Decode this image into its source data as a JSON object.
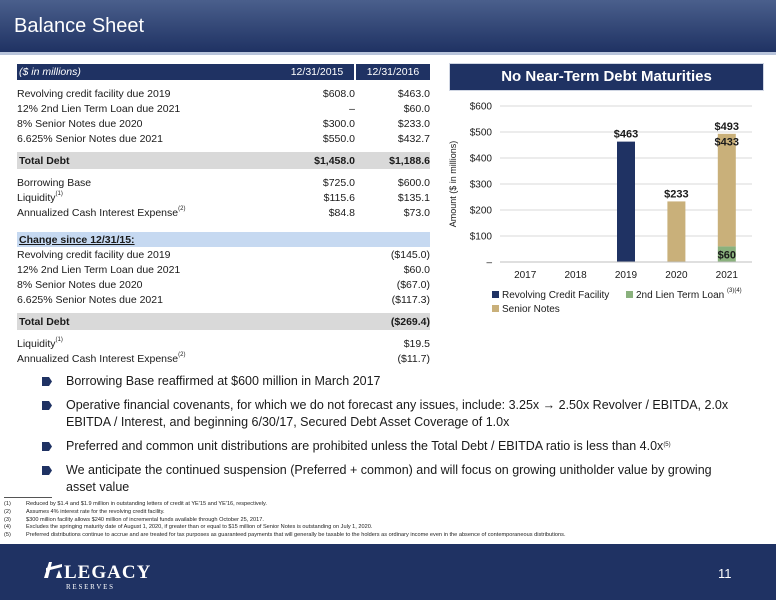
{
  "header": {
    "title": "Balance Sheet"
  },
  "table": {
    "units_label": "($ in millions)",
    "dates": [
      "12/31/2015",
      "12/31/2016"
    ],
    "debt_rows": [
      {
        "label": "Revolving credit facility due 2019",
        "v1": "$608.0",
        "v2": "$463.0"
      },
      {
        "label": "12% 2nd Lien Term Loan due 2021",
        "v1": "–",
        "v2": "$60.0"
      },
      {
        "label": "8% Senior Notes due 2020",
        "v1": "$300.0",
        "v2": "$233.0"
      },
      {
        "label": "6.625% Senior Notes due 2021",
        "v1": "$550.0",
        "v2": "$432.7"
      }
    ],
    "total_debt": {
      "label": "Total Debt",
      "v1": "$1,458.0",
      "v2": "$1,188.6"
    },
    "borrowing_base": {
      "label": "Borrowing Base",
      "v1": "$725.0",
      "v2": "$600.0"
    },
    "liquidity": {
      "label": "Liquidity",
      "sup": "(1)",
      "v1": "$115.6",
      "v2": "$135.1"
    },
    "interest": {
      "label": "Annualized Cash Interest Expense",
      "sup": "(2)",
      "v1": "$84.8",
      "v2": "$73.0"
    },
    "change_label": "Change since 12/31/15:",
    "change_rows": [
      {
        "label": "Revolving credit facility due 2019",
        "v": "($145.0)"
      },
      {
        "label": "12% 2nd Lien Term Loan due 2021",
        "v": "$60.0"
      },
      {
        "label": "8% Senior Notes due 2020",
        "v": "($67.0)"
      },
      {
        "label": "6.625% Senior Notes due 2021",
        "v": "($117.3)"
      }
    ],
    "change_total": {
      "label": "Total Debt",
      "v": "($269.4)"
    },
    "change_liquidity": {
      "label": "Liquidity",
      "sup": "(1)",
      "v": "$19.5"
    },
    "change_interest": {
      "label": "Annualized Cash Interest Expense",
      "sup": "(2)",
      "v": "($11.7)"
    }
  },
  "chart_banner": "No Near-Term Debt Maturities",
  "chart_data": {
    "type": "bar",
    "stacked": true,
    "categories": [
      "2017",
      "2018",
      "2019",
      "2020",
      "2021"
    ],
    "series": [
      {
        "name": "Revolving Credit Facility",
        "color": "#1f3263",
        "values": [
          0,
          0,
          463,
          0,
          0
        ]
      },
      {
        "name": "2nd Lien Term Loan",
        "color": "#8ab17d",
        "values": [
          0,
          0,
          0,
          0,
          60
        ]
      },
      {
        "name": "Senior Notes",
        "color": "#c9b07a",
        "values": [
          0,
          0,
          0,
          233,
          433
        ]
      }
    ],
    "data_labels": [
      {
        "category": "2019",
        "value": 463,
        "text": "$463"
      },
      {
        "category": "2020",
        "value": 233,
        "text": "$233"
      },
      {
        "category": "2021",
        "value": 493,
        "text": "$493"
      },
      {
        "category": "2021",
        "value": 433,
        "text": "$433"
      },
      {
        "category": "2021",
        "value": 60,
        "text": "$60"
      }
    ],
    "ylabel": "Amount ($ in millions)",
    "ylim": [
      0,
      600
    ],
    "yticks": [
      0,
      100,
      200,
      300,
      400,
      500,
      600
    ],
    "ytick_labels": [
      "–",
      "$100",
      "$200",
      "$300",
      "$400",
      "$500",
      "$600"
    ],
    "legend_position": "bottom",
    "legend_note": "(3)(4)",
    "grid": true
  },
  "bullets": [
    {
      "text": "Borrowing Base reaffirmed at $600 million in March 2017"
    },
    {
      "text": "Operative financial covenants, for which we do not forecast any issues, include:  3.25x → 2.50x Revolver / EBITDA, 2.0x EBITDA / Interest, and beginning 6/30/17, Secured Debt Asset Coverage of 1.0x"
    },
    {
      "text": "Preferred and common unit distributions are prohibited unless the Total Debt / EBITDA ratio is less than 4.0x",
      "sup": "(5)"
    },
    {
      "text": "We anticipate the continued suspension (Preferred + common) and will focus on growing unitholder value by growing asset value"
    }
  ],
  "footnotes": [
    {
      "num": "(1)",
      "text": "Reduced by $1.4 and $1.9 million in outstanding letters of credit at YE'15 and YE'16, respectively."
    },
    {
      "num": "(2)",
      "text": "Assumes 4% interest rate for the revolving credit facility."
    },
    {
      "num": "(3)",
      "text": "$300 million facility allows $240 million of incremental funds available through October 25, 2017."
    },
    {
      "num": "(4)",
      "text": "Excludes the springing maturity date of August 1, 2020, if greater than or equal to $15 million of Senior Notes is outstanding on July 1, 2020."
    },
    {
      "num": "(5)",
      "text": "Preferred distributions continue to accrue and are treated for tax purposes as guaranteed payments that will generally be taxable to the holders as ordinary income even in the absence of contemporaneous distributions."
    }
  ],
  "footer": {
    "logo_word": "LEGACY",
    "logo_sub": "R E S E R V E S",
    "page_number": "11"
  }
}
